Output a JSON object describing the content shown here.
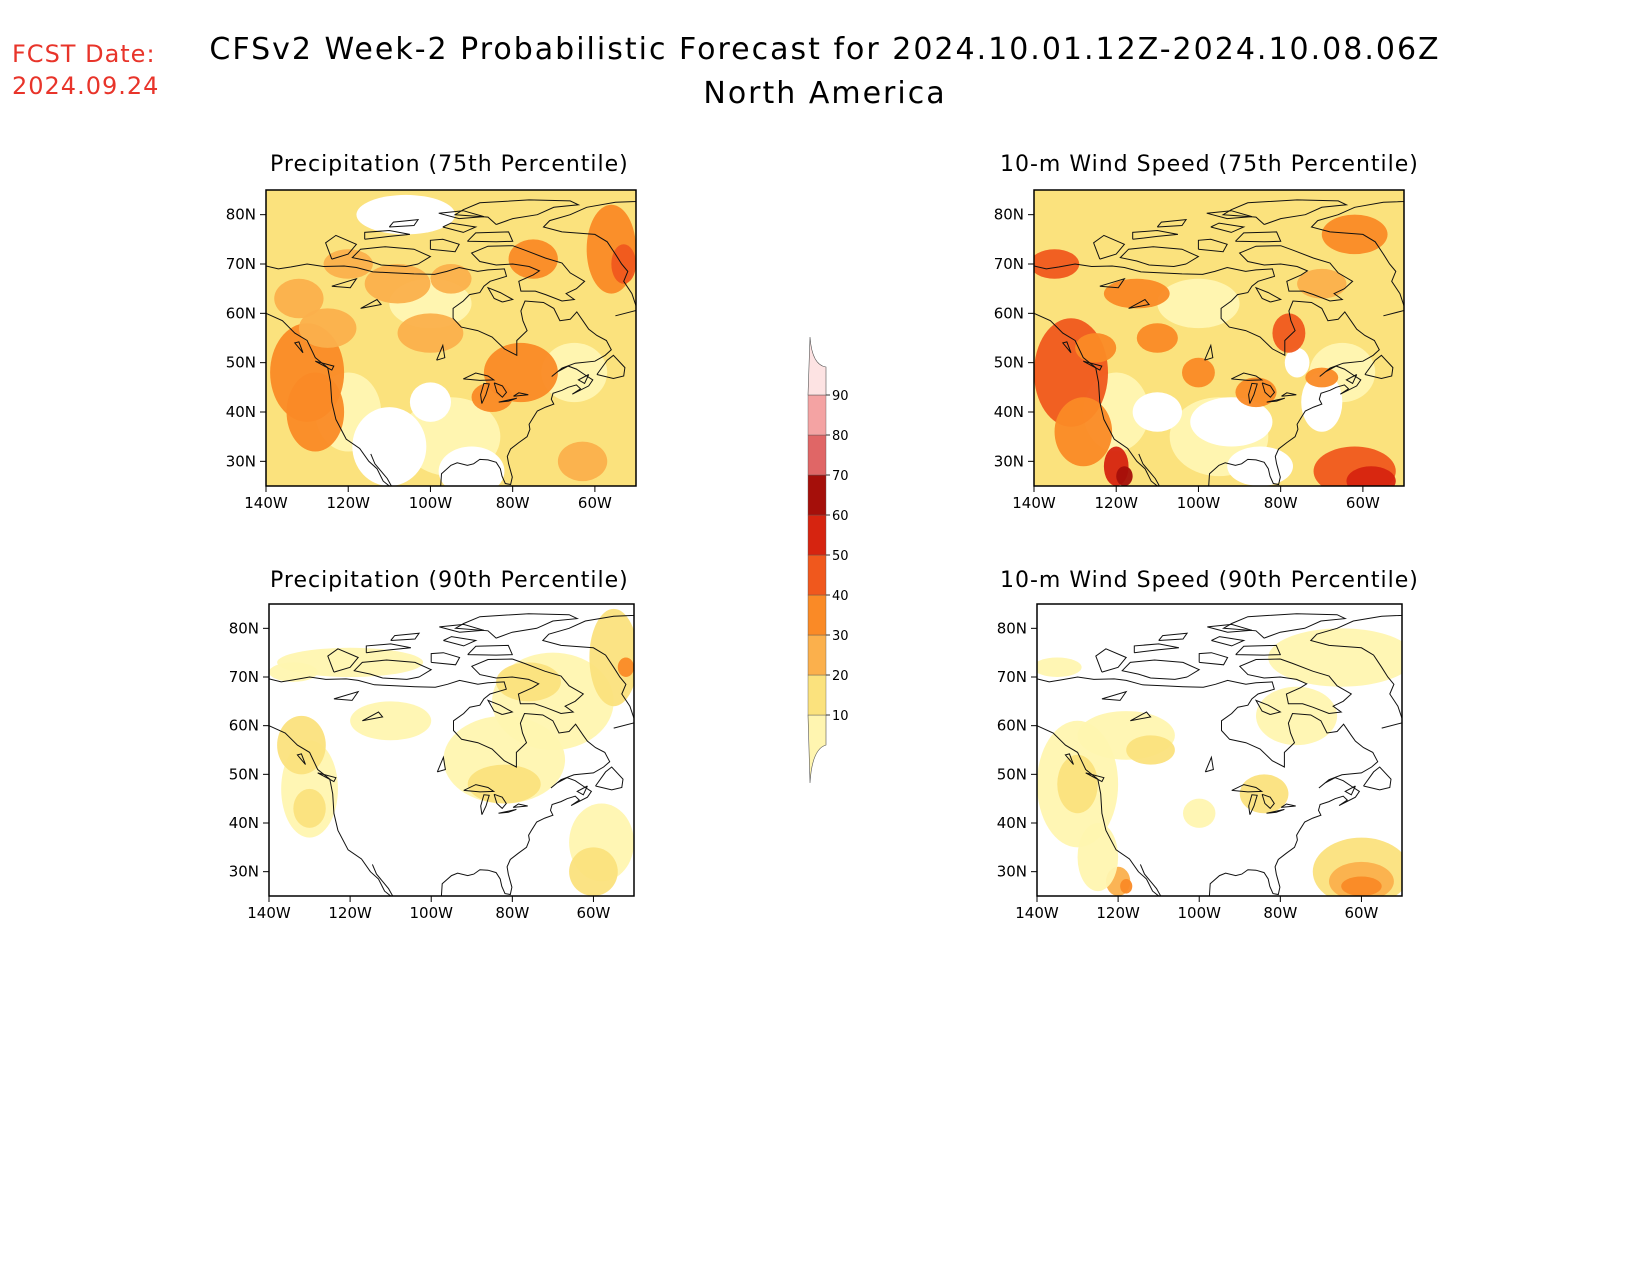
{
  "header": {
    "fcst_label": "FCST Date:",
    "fcst_date": "2024.09.24",
    "title": "CFSv2 Week-2 Probabilistic Forecast for 2024.10.01.12Z-2024.10.08.06Z",
    "subtitle": "North America"
  },
  "panels": [
    {
      "id": "precip75",
      "title": "Precipitation (75th Percentile)"
    },
    {
      "id": "wind75",
      "title": "10-m Wind Speed (75th Percentile)"
    },
    {
      "id": "precip90",
      "title": "Precipitation (90th Percentile)"
    },
    {
      "id": "wind90",
      "title": "10-m Wind Speed (90th Percentile)"
    }
  ],
  "axes": {
    "lat_labels": [
      "80N",
      "70N",
      "60N",
      "50N",
      "40N",
      "30N"
    ],
    "lon_labels": [
      "140W",
      "120W",
      "100W",
      "80W",
      "60W"
    ],
    "lat_values": [
      80,
      70,
      60,
      50,
      40,
      30
    ],
    "lon_values": [
      -140,
      -120,
      -100,
      -80,
      -60
    ],
    "lat_range": [
      25,
      85
    ],
    "lon_range": [
      -140,
      -50
    ]
  },
  "colorbar": {
    "levels": [
      "10",
      "20",
      "30",
      "40",
      "50",
      "60",
      "70",
      "80",
      "90"
    ],
    "colors": [
      "#fff5b0",
      "#fbe27d",
      "#fbb04c",
      "#fa8a26",
      "#f0581d",
      "#d62410",
      "#a50f0a",
      "#e06666",
      "#f4a3a3",
      "#fde3e3"
    ]
  }
}
